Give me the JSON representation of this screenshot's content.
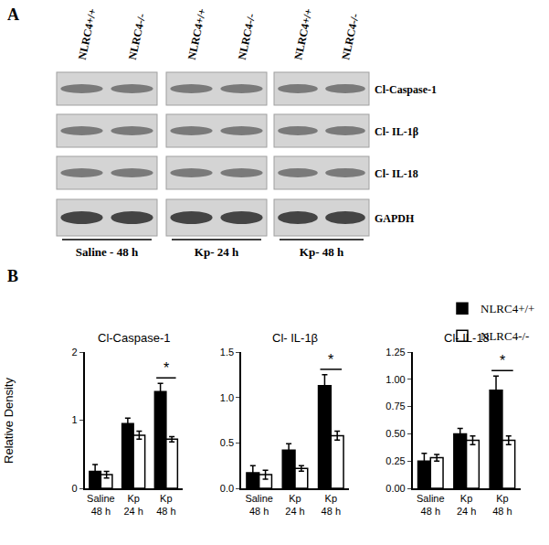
{
  "panel_a": {
    "label": "A",
    "lanes": [
      "NLRC4+/+",
      "NLRC4-/-"
    ],
    "groups": [
      "Saline - 48 h",
      "Kp- 24 h",
      "Kp- 48 h"
    ],
    "rows": [
      "Cl-Caspase-1",
      "Cl- IL-1β",
      "Cl- IL-18",
      "GAPDH"
    ]
  },
  "panel_b": {
    "label": "B"
  },
  "chart_data": [
    {
      "type": "bar",
      "title": "Cl-Caspase-1",
      "ylabel": "Relative Density",
      "categories": [
        "Saline\n48 h",
        "Kp\n24 h",
        "Kp\n48 h"
      ],
      "series": [
        {
          "name": "NLRC4+/+",
          "color": "#000000",
          "values": [
            0.25,
            0.95,
            1.42
          ],
          "errors": [
            0.1,
            0.08,
            0.12
          ]
        },
        {
          "name": "NLRC4-/-",
          "color": "#ffffff",
          "values": [
            0.2,
            0.78,
            0.72
          ],
          "errors": [
            0.05,
            0.06,
            0.04
          ]
        }
      ],
      "ylim": [
        0,
        2
      ],
      "yticks": [
        0,
        1,
        2
      ],
      "grid": false,
      "legend": "top right",
      "annotations": [
        {
          "category": "Kp\n48 h",
          "text": "*"
        }
      ]
    },
    {
      "type": "bar",
      "title": "Cl- IL-1β",
      "categories": [
        "Saline\n48 h",
        "Kp\n24 h",
        "Kp\n48 h"
      ],
      "series": [
        {
          "name": "NLRC4+/+",
          "color": "#000000",
          "values": [
            0.17,
            0.42,
            1.13
          ],
          "errors": [
            0.08,
            0.07,
            0.12
          ]
        },
        {
          "name": "NLRC4-/-",
          "color": "#ffffff",
          "values": [
            0.15,
            0.22,
            0.58
          ],
          "errors": [
            0.05,
            0.03,
            0.05
          ]
        }
      ],
      "ylim": [
        0,
        1.5
      ],
      "yticks": [
        {
          "value": 0,
          "label": "0.0"
        },
        {
          "value": 0.5,
          "label": "0.5"
        },
        {
          "value": 1,
          "label": "1.0"
        },
        {
          "value": 1.5,
          "label": "1.5"
        }
      ],
      "grid": false,
      "annotations": [
        {
          "category": "Kp\n48 h",
          "text": "*"
        }
      ]
    },
    {
      "type": "bar",
      "title": "Cl- IL-18",
      "categories": [
        "Saline\n48 h",
        "Kp\n24 h",
        "Kp\n48 h"
      ],
      "series": [
        {
          "name": "NLRC4+/+",
          "color": "#000000",
          "values": [
            0.25,
            0.5,
            0.9
          ],
          "errors": [
            0.07,
            0.05,
            0.13
          ]
        },
        {
          "name": "NLRC4-/-",
          "color": "#ffffff",
          "values": [
            0.28,
            0.44,
            0.44
          ],
          "errors": [
            0.03,
            0.04,
            0.04
          ]
        }
      ],
      "ylim": [
        0,
        1.25
      ],
      "yticks": [
        {
          "value": 0,
          "label": "0.00"
        },
        {
          "value": 0.25,
          "label": "0.25"
        },
        {
          "value": 0.5,
          "label": "0.50"
        },
        {
          "value": 0.75,
          "label": "0.75"
        },
        {
          "value": 1,
          "label": "1.00"
        },
        {
          "value": 1.25,
          "label": "1.25"
        }
      ],
      "grid": false,
      "annotations": [
        {
          "category": "Kp\n48 h",
          "text": "*"
        }
      ]
    }
  ]
}
